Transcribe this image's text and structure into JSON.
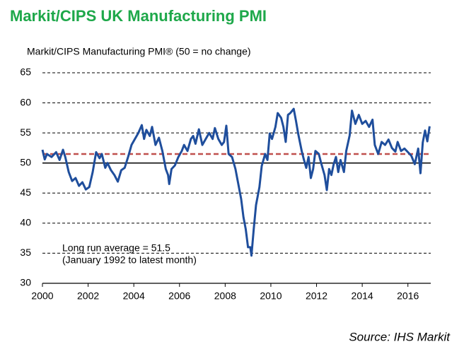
{
  "chart_data": {
    "type": "line",
    "title": "Markit/CIPS UK Manufacturing PMI",
    "y_label": "Markit/CIPS Manufacturing PMI® (50 = no change)",
    "source": "Source: IHS Markit",
    "annotations": [
      "Long run average = 51.5",
      "(January 1992 to latest month)"
    ],
    "average": 51.5,
    "average_color": "#c0504d",
    "reference_line": 50,
    "grid": true,
    "xlim": [
      2000,
      2017
    ],
    "xticks": [
      2000,
      2002,
      2004,
      2006,
      2008,
      2010,
      2012,
      2014,
      2016
    ],
    "ylim": [
      30,
      65
    ],
    "yticks": [
      30,
      35,
      40,
      45,
      50,
      55,
      60,
      65
    ],
    "series": [
      {
        "name": "PMI",
        "color": "#1f4e9c",
        "x": [
          2000.0,
          2000.1,
          2000.2,
          2000.4,
          2000.6,
          2000.75,
          2000.9,
          2001.0,
          2001.15,
          2001.3,
          2001.45,
          2001.6,
          2001.75,
          2001.9,
          2002.05,
          2002.2,
          2002.35,
          2002.5,
          2002.6,
          2002.75,
          2002.85,
          2003.0,
          2003.15,
          2003.3,
          2003.45,
          2003.6,
          2003.75,
          2003.9,
          2004.05,
          2004.2,
          2004.35,
          2004.45,
          2004.55,
          2004.7,
          2004.8,
          2004.95,
          2005.1,
          2005.25,
          2005.4,
          2005.5,
          2005.55,
          2005.65,
          2005.8,
          2005.95,
          2006.1,
          2006.2,
          2006.35,
          2006.5,
          2006.6,
          2006.7,
          2006.85,
          2007.0,
          2007.15,
          2007.3,
          2007.45,
          2007.55,
          2007.7,
          2007.85,
          2007.95,
          2008.05,
          2008.15,
          2008.3,
          2008.45,
          2008.6,
          2008.7,
          2008.8,
          2008.9,
          2009.0,
          2009.1,
          2009.15,
          2009.25,
          2009.35,
          2009.5,
          2009.6,
          2009.75,
          2009.85,
          2009.95,
          2010.05,
          2010.2,
          2010.3,
          2010.45,
          2010.55,
          2010.65,
          2010.75,
          2010.85,
          2011.0,
          2011.1,
          2011.2,
          2011.35,
          2011.45,
          2011.55,
          2011.65,
          2011.75,
          2011.85,
          2011.95,
          2012.1,
          2012.2,
          2012.35,
          2012.45,
          2012.55,
          2012.65,
          2012.75,
          2012.85,
          2012.95,
          2013.05,
          2013.2,
          2013.3,
          2013.45,
          2013.55,
          2013.7,
          2013.85,
          2014.0,
          2014.15,
          2014.3,
          2014.45,
          2014.55,
          2014.7,
          2014.85,
          2015.0,
          2015.15,
          2015.3,
          2015.45,
          2015.55,
          2015.7,
          2015.85,
          2016.0,
          2016.15,
          2016.3,
          2016.45,
          2016.55,
          2016.65,
          2016.75,
          2016.85,
          2016.95
        ],
        "values": [
          52.2,
          50.6,
          51.5,
          51.0,
          51.8,
          50.5,
          52.2,
          51.0,
          48.5,
          47.0,
          47.5,
          46.2,
          46.8,
          45.6,
          46.0,
          48.5,
          51.8,
          50.8,
          51.5,
          49.2,
          50.0,
          48.8,
          48.0,
          46.9,
          48.8,
          49.2,
          51.0,
          53.0,
          54.0,
          55.0,
          56.3,
          54.0,
          55.5,
          54.5,
          56.0,
          53.0,
          54.2,
          52.0,
          49.0,
          48.0,
          46.5,
          49.0,
          49.6,
          51.0,
          52.0,
          53.0,
          52.0,
          54.0,
          54.5,
          53.2,
          55.6,
          53.0,
          54.0,
          55.0,
          54.0,
          55.8,
          54.0,
          53.0,
          53.5,
          56.2,
          51.5,
          51.0,
          49.0,
          46.0,
          44.0,
          41.0,
          39.0,
          36.0,
          36.0,
          34.6,
          39.0,
          43.0,
          46.0,
          49.5,
          51.5,
          50.5,
          54.9,
          54.0,
          56.0,
          58.3,
          57.5,
          56.0,
          53.5,
          58.0,
          58.3,
          59.0,
          57.0,
          54.8,
          52.0,
          50.5,
          49.2,
          51.0,
          47.5,
          49.0,
          52.0,
          51.5,
          50.0,
          48.0,
          45.5,
          49.0,
          48.0,
          49.8,
          51.0,
          48.5,
          50.5,
          48.5,
          52.0,
          54.6,
          58.7,
          56.5,
          58.0,
          56.5,
          57.0,
          56.0,
          57.2,
          53.0,
          51.5,
          53.5,
          53.0,
          53.9,
          52.5,
          51.9,
          53.5,
          52.0,
          52.4,
          51.8,
          51.2,
          49.8,
          52.4,
          48.3,
          53.4,
          55.4,
          53.6,
          56.1
        ]
      }
    ]
  }
}
